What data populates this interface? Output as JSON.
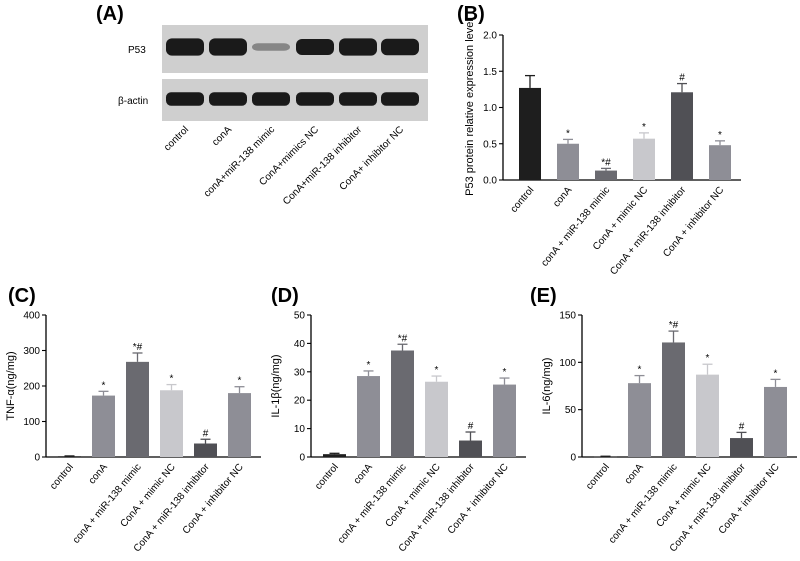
{
  "panels": [
    "(A)",
    "(B)",
    "(C)",
    "(D)",
    "(E)"
  ],
  "blot": {
    "rows": [
      "P53",
      "β-actin"
    ],
    "lanes": [
      "control",
      "conA",
      "conA+miR-138 mimic",
      "ConA+mimics NC",
      "ConA+miR-138 inhibitor",
      "ConA+ inhibitor NC"
    ],
    "p53_intensity": [
      0.95,
      0.95,
      0.25,
      0.85,
      0.95,
      0.9
    ],
    "actin_intensity": [
      0.95,
      0.95,
      0.95,
      0.95,
      0.95,
      0.95
    ]
  },
  "colors": {
    "bars": [
      "#1e1e1e",
      "#8e8e96",
      "#6a6a70",
      "#c8c8cc",
      "#505055",
      "#8e8e96"
    ],
    "band": "#1a1a1a",
    "blot_bg": "#cfcfcf"
  },
  "chart_data": [
    {
      "id": "B",
      "type": "bar",
      "ylabel": "P53 protein relative expression level",
      "ylim": [
        0,
        2.0
      ],
      "yticks": [
        "0.0",
        "0.5",
        "1.0",
        "1.5",
        "2.0"
      ],
      "categories": [
        "control",
        "conA",
        "conA + miR-138 mimic",
        "ConA + mimic NC",
        "ConA + miR-138 inhibitor",
        "ConA + inhibitor NC"
      ],
      "values": [
        1.27,
        0.5,
        0.13,
        0.57,
        1.21,
        0.48
      ],
      "errors": [
        0.17,
        0.06,
        0.03,
        0.08,
        0.12,
        0.06
      ],
      "marks": [
        "",
        "*",
        "*#",
        "*",
        "#",
        "*"
      ]
    },
    {
      "id": "C",
      "type": "bar",
      "ylabel": "TNF-α(ng/mg)",
      "ylim": [
        0,
        400
      ],
      "yticks": [
        "0",
        "100",
        "200",
        "300",
        "400"
      ],
      "categories": [
        "control",
        "conA",
        "conA + miR-138 mimic",
        "ConA + mimic NC",
        "ConA + miR-138 inhibitor",
        "ConA + inhibitor NC"
      ],
      "values": [
        2,
        173,
        268,
        188,
        38,
        180
      ],
      "errors": [
        1,
        12,
        25,
        16,
        12,
        18
      ],
      "marks": [
        "",
        "*",
        "*#",
        "*",
        "#",
        "*"
      ]
    },
    {
      "id": "D",
      "type": "bar",
      "ylabel": "IL-1β(ng/mg)",
      "ylim": [
        0,
        50
      ],
      "yticks": [
        "0",
        "10",
        "20",
        "30",
        "40",
        "50"
      ],
      "categories": [
        "control",
        "conA",
        "conA + miR-138 mimic",
        "ConA + mimic NC",
        "ConA + miR-138 inhibitor",
        "ConA + inhibitor NC"
      ],
      "values": [
        1,
        28.5,
        37.5,
        26.5,
        5.8,
        25.5
      ],
      "errors": [
        0.3,
        1.8,
        2.2,
        2.0,
        3.0,
        2.3
      ],
      "marks": [
        "",
        "*",
        "*#",
        "*",
        "#",
        "*"
      ]
    },
    {
      "id": "E",
      "type": "bar",
      "ylabel": "IL-6(ng/mg)",
      "ylim": [
        0,
        150
      ],
      "yticks": [
        "0",
        "50",
        "100",
        "150"
      ],
      "categories": [
        "control",
        "conA",
        "conA + miR-138 mimic",
        "ConA + mimic NC",
        "ConA + miR-138 inhibitor",
        "ConA + inhibitor NC"
      ],
      "values": [
        0.5,
        78,
        121,
        87,
        20,
        74
      ],
      "errors": [
        0.3,
        8,
        12,
        11,
        6,
        8
      ],
      "marks": [
        "",
        "*",
        "*#",
        "*",
        "#",
        "*"
      ]
    }
  ]
}
